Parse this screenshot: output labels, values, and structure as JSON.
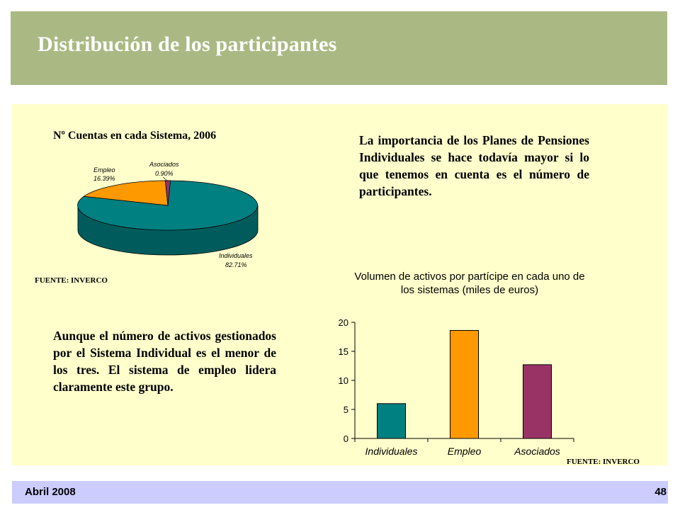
{
  "slide": {
    "title": "Distribución  de los participantes",
    "footer_date": "Abril 2008",
    "page_number": "48"
  },
  "texts": {
    "paragraph_1": "La importancia de los  Planes de Pensiones Individuales se hace todavía mayor si lo que tenemos en cuenta es el número de participantes.",
    "paragraph_2": "Aunque el número de activos gestionados por el Sistema Individual es el menor de los tres. El sistema de empleo lidera claramente este grupo.",
    "source_pie": "FUENTE: INVERCO",
    "source_bar": "FUENTE: INVERCO"
  },
  "colors": {
    "header_bg": "#aab983",
    "content_bg": "#ffffcc",
    "footer_bg": "#ccccff",
    "individuales": "#008080",
    "empleo": "#ff9900",
    "asociados": "#993366"
  },
  "chart_data": [
    {
      "type": "pie",
      "title": "Nº Cuentas en cada Sistema, 2006",
      "slices": [
        {
          "label": "Individuales",
          "value": 82.71,
          "value_label": "82.71%"
        },
        {
          "label": "Empleo",
          "value": 16.39,
          "value_label": "16.39%"
        },
        {
          "label": "Asociados",
          "value": 0.9,
          "value_label": "0.90%"
        }
      ],
      "three_d": true
    },
    {
      "type": "bar",
      "title_line1": "Volumen de activos por partícipe en cada uno de",
      "title_line2": "los sistemas (miles de euros)",
      "categories": [
        "Individuales",
        "Empleo",
        "Asociados"
      ],
      "values": [
        6.0,
        18.6,
        12.7
      ],
      "yticks": [
        "0",
        "5",
        "10",
        "15",
        "20"
      ],
      "ylim": [
        0,
        20
      ],
      "xlabel": "",
      "ylabel": "",
      "legend": false
    }
  ]
}
